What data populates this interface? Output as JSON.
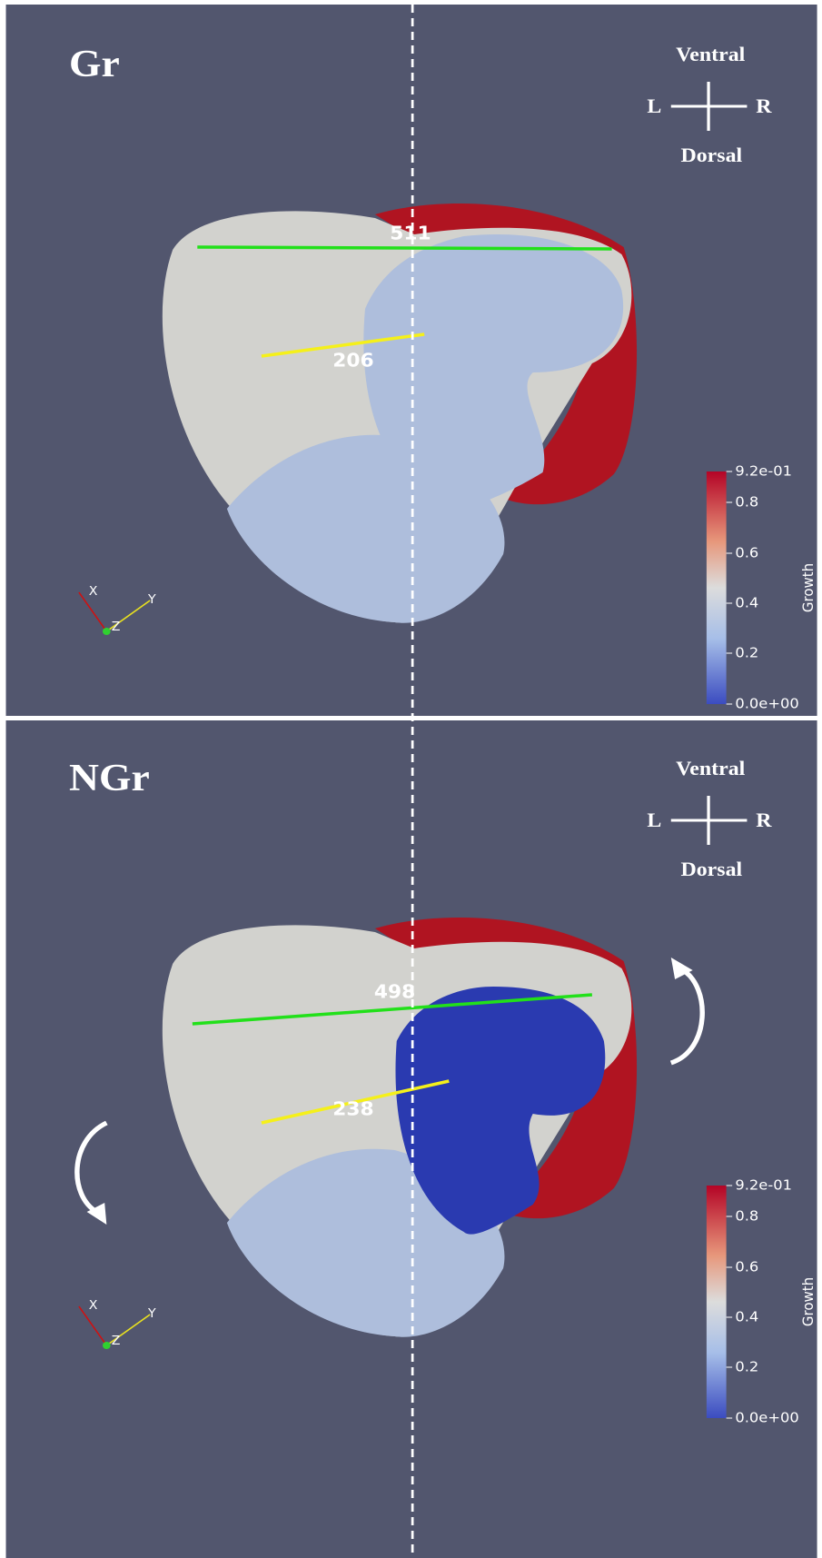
{
  "panels": [
    {
      "label": "Gr",
      "orientation": {
        "top": "Ventral",
        "left": "L",
        "right": "R",
        "bottom": "Dorsal"
      },
      "measurements": [
        "511",
        "206"
      ],
      "axes": [
        "X",
        "Y",
        "Z"
      ],
      "colorbar": {
        "title": "Growth",
        "ticks": [
          "9.2e-01",
          "0.8",
          "0.6",
          "0.4",
          "0.2",
          "0.0e+00"
        ]
      }
    },
    {
      "label": "NGr",
      "orientation": {
        "top": "Ventral",
        "left": "L",
        "right": "R",
        "bottom": "Dorsal"
      },
      "measurements": [
        "498",
        "238"
      ],
      "axes": [
        "X",
        "Y",
        "Z"
      ],
      "colorbar": {
        "title": "Growth",
        "ticks": [
          "9.2e-01",
          "0.8",
          "0.6",
          "0.4",
          "0.2",
          "0.0e+00"
        ]
      }
    }
  ]
}
